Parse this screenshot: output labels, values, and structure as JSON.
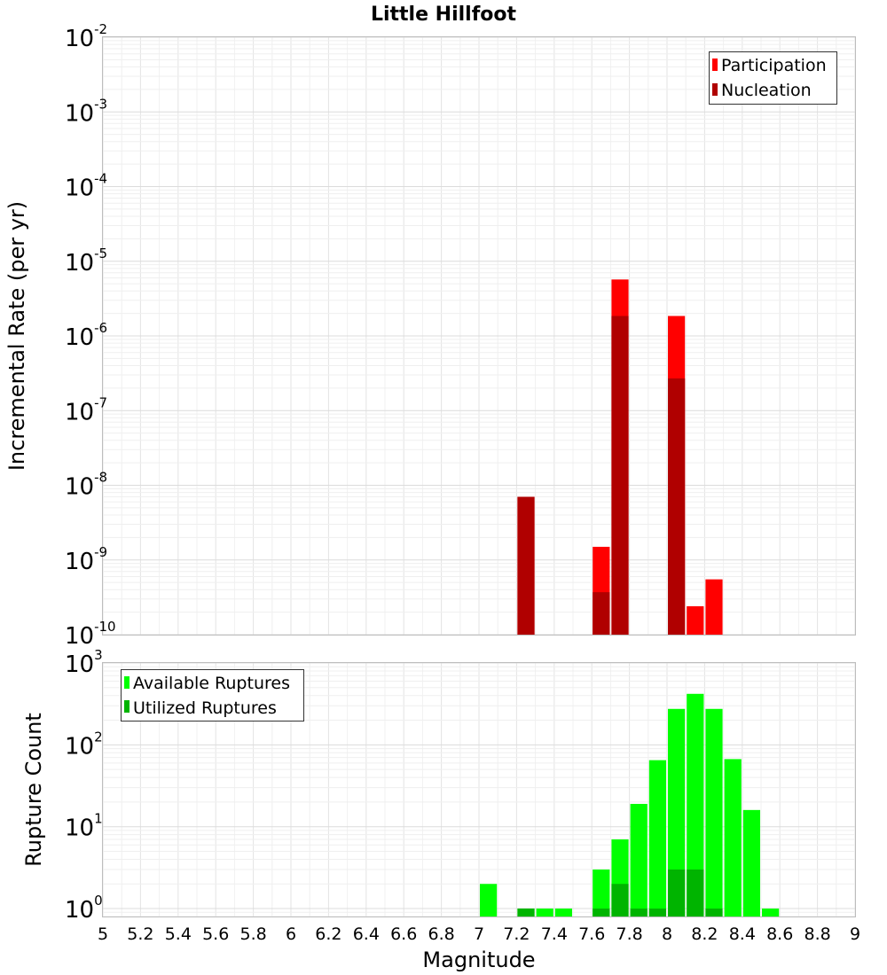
{
  "chart_data": [
    {
      "type": "bar",
      "title": "Little Hillfoot",
      "xlabel": "",
      "ylabel": "Incremental Rate (per yr)",
      "yscale": "log",
      "ylim": [
        1e-10,
        0.01
      ],
      "xlim": [
        5,
        9
      ],
      "ytick_base": "10",
      "ytick_exponents": [
        "-10",
        "-9",
        "-8",
        "-7",
        "-6",
        "-5",
        "-4",
        "-3",
        "-2"
      ],
      "grid": true,
      "legend_position": "top-right",
      "bar_width": 0.1,
      "series": [
        {
          "name": "Participation",
          "color": "#ff0000",
          "x": [
            7.25,
            7.65,
            7.75,
            8.05,
            8.15,
            8.25
          ],
          "values": [
            7e-09,
            1.5e-09,
            5.7e-06,
            1.85e-06,
            2.4e-10,
            5.5e-10
          ]
        },
        {
          "name": "Nucleation",
          "color": "#b00000",
          "x": [
            7.25,
            7.65,
            7.75,
            8.05
          ],
          "values": [
            7e-09,
            3.7e-10,
            1.85e-06,
            2.7e-07
          ]
        }
      ]
    },
    {
      "type": "bar",
      "xlabel": "Magnitude",
      "ylabel": "Rupture Count",
      "yscale": "log",
      "ylim": [
        0.8,
        1000
      ],
      "xlim": [
        5,
        9
      ],
      "ytick_base": "10",
      "ytick_exponents": [
        "0",
        "1",
        "2",
        "3"
      ],
      "xticks": [
        "5",
        "5.2",
        "5.4",
        "5.6",
        "5.8",
        "6",
        "6.2",
        "6.4",
        "6.6",
        "6.8",
        "7",
        "7.2",
        "7.4",
        "7.6",
        "7.8",
        "8",
        "8.2",
        "8.4",
        "8.6",
        "8.8",
        "9"
      ],
      "grid": true,
      "legend_position": "top-left",
      "bar_width": 0.1,
      "series": [
        {
          "name": "Available Ruptures",
          "color": "#00ff00",
          "x": [
            7.05,
            7.25,
            7.35,
            7.45,
            7.65,
            7.75,
            7.85,
            7.95,
            8.05,
            8.15,
            8.25,
            8.35,
            8.45,
            8.55
          ],
          "values": [
            2,
            1,
            1,
            1,
            3,
            7,
            19,
            65,
            275,
            420,
            275,
            67,
            16,
            1
          ]
        },
        {
          "name": "Utilized Ruptures",
          "color": "#00b400",
          "x": [
            7.25,
            7.65,
            7.75,
            7.85,
            7.95,
            8.05,
            8.15,
            8.25
          ],
          "values": [
            1,
            1,
            2,
            1,
            1,
            3,
            3,
            1
          ]
        }
      ]
    }
  ]
}
